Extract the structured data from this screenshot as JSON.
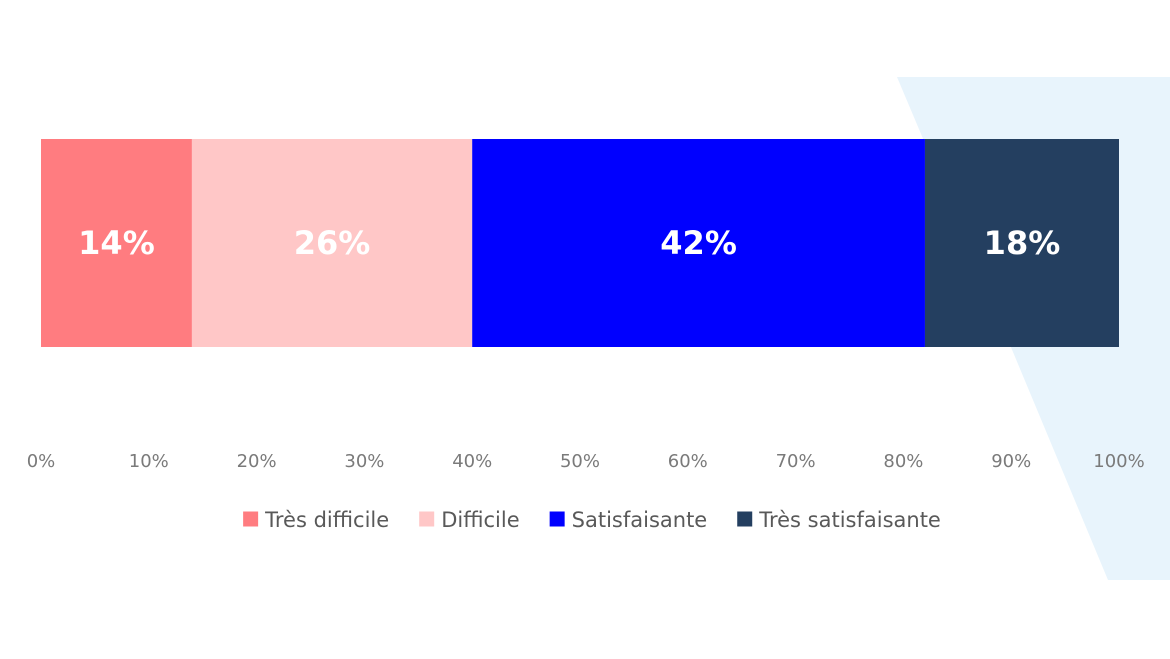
{
  "chart_data": {
    "type": "bar",
    "orientation": "horizontal",
    "stacked": true,
    "categories": [
      ""
    ],
    "series": [
      {
        "name": "Très difficile",
        "values": [
          14
        ],
        "label": "14%",
        "color": "#ff7c80"
      },
      {
        "name": "Difficile",
        "values": [
          26
        ],
        "label": "26%",
        "color": "#ffc7c7"
      },
      {
        "name": "Satisfaisante",
        "values": [
          42
        ],
        "label": "42%",
        "color": "#0000ff"
      },
      {
        "name": "Très satisfaisante",
        "values": [
          18
        ],
        "label": "18%",
        "color": "#243f60"
      }
    ],
    "x_ticks": [
      "0%",
      "10%",
      "20%",
      "30%",
      "40%",
      "50%",
      "60%",
      "70%",
      "80%",
      "90%",
      "100%"
    ],
    "xlim": [
      0,
      100
    ],
    "grid": false,
    "legend_position": "bottom",
    "data_label_color": "#ffffff",
    "tick_label_color": "#7a7a7a",
    "legend_text_color": "#595959",
    "background_accent_color": "#e8f4fc"
  }
}
